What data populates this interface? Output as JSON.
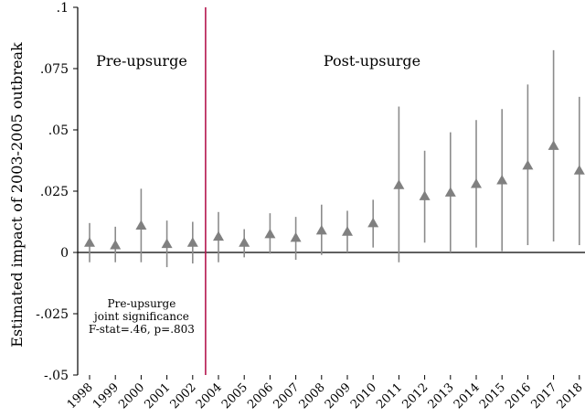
{
  "chart_data": {
    "type": "scatter",
    "ylabel": "Estimated impact of 2003-2005 outbreak",
    "xlabel": "",
    "ylim": [
      -0.05,
      0.1
    ],
    "yticks": [
      {
        "value": 0.1,
        "label": ".1"
      },
      {
        "value": 0.075,
        "label": ".075"
      },
      {
        "value": 0.05,
        "label": ".05"
      },
      {
        "value": 0.025,
        "label": ".025"
      },
      {
        "value": 0,
        "label": "0"
      },
      {
        "value": -0.025,
        "label": "-.025"
      },
      {
        "value": -0.05,
        "label": "-.05"
      }
    ],
    "categories": [
      "1998",
      "1999",
      "2000",
      "2001",
      "2002",
      "2004",
      "2005",
      "2006",
      "2007",
      "2008",
      "2009",
      "2010",
      "2011",
      "2012",
      "2013",
      "2014",
      "2015",
      "2016",
      "2017",
      "2018"
    ],
    "estimates": [
      0.004,
      0.003,
      0.011,
      0.0035,
      0.004,
      0.0065,
      0.004,
      0.0075,
      0.006,
      0.009,
      0.0085,
      0.012,
      0.0275,
      0.023,
      0.0245,
      0.028,
      0.0295,
      0.0355,
      0.0435,
      0.0335
    ],
    "ci_low": [
      -0.004,
      -0.004,
      -0.004,
      -0.006,
      -0.0045,
      -0.004,
      -0.002,
      -0.0005,
      -0.003,
      -0.001,
      0.0,
      0.002,
      -0.004,
      0.004,
      0.0,
      0.002,
      0.0005,
      0.003,
      0.0045,
      0.003
    ],
    "ci_high": [
      0.012,
      0.0105,
      0.026,
      0.013,
      0.0125,
      0.0165,
      0.0095,
      0.016,
      0.0145,
      0.0195,
      0.017,
      0.0215,
      0.0595,
      0.0415,
      0.049,
      0.054,
      0.0585,
      0.0685,
      0.0825,
      0.0635
    ],
    "reference_line_between": [
      "2002",
      "2004"
    ],
    "zero_line": 0,
    "marker_color": "#808080",
    "errorbar_color": "#8c8c8c",
    "reference_line_color": "#b5174f",
    "panel_labels": {
      "left": "Pre-upsurge",
      "right": "Post-upsurge"
    },
    "annotation": {
      "line1": "Pre-upsurge",
      "line2": "joint significance",
      "line3": "F-stat=.46, p=.803"
    },
    "grid": false,
    "legend": "none"
  }
}
